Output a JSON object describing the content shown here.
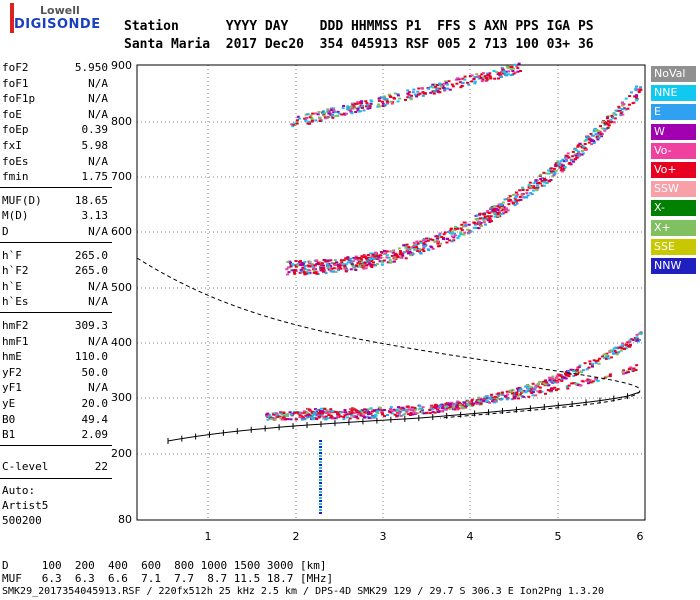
{
  "logo": {
    "line1": "Lowell",
    "line2": "DIGISONDE"
  },
  "header": {
    "row1": "Station      YYYY DAY    DDD HHMMSS P1  FFS S AXN PPS IGA PS",
    "row2": "Santa Maria  2017 Dec20  354 045913 RSF 005 2 713 100 03+ 36"
  },
  "params_group1": [
    {
      "k": "foF2",
      "v": "5.950"
    },
    {
      "k": "foF1",
      "v": "N/A"
    },
    {
      "k": "foF1p",
      "v": "N/A"
    },
    {
      "k": "foE",
      "v": "N/A"
    },
    {
      "k": "foEp",
      "v": "0.39"
    },
    {
      "k": "fxI",
      "v": "5.98"
    },
    {
      "k": "foEs",
      "v": "N/A"
    },
    {
      "k": "fmin",
      "v": "1.75"
    }
  ],
  "params_group2": [
    {
      "k": "MUF(D)",
      "v": "18.65"
    },
    {
      "k": "M(D)",
      "v": "3.13"
    },
    {
      "k": "D",
      "v": "N/A"
    }
  ],
  "params_group3": [
    {
      "k": "h`F",
      "v": "265.0"
    },
    {
      "k": "h`F2",
      "v": "265.0"
    },
    {
      "k": "h`E",
      "v": "N/A"
    },
    {
      "k": "h`Es",
      "v": "N/A"
    }
  ],
  "params_group4": [
    {
      "k": "hmF2",
      "v": "309.3"
    },
    {
      "k": "hmF1",
      "v": "N/A"
    },
    {
      "k": "hmE",
      "v": "110.0"
    },
    {
      "k": "yF2",
      "v": "50.0"
    },
    {
      "k": "yF1",
      "v": "N/A"
    },
    {
      "k": "yE",
      "v": "20.0"
    },
    {
      "k": "B0",
      "v": "49.4"
    },
    {
      "k": "B1",
      "v": "2.09"
    }
  ],
  "clevel": {
    "k": "C-level",
    "v": "22"
  },
  "auto": {
    "l1": "Auto:",
    "l2": "Artist5",
    "l3": "500200"
  },
  "legend": [
    {
      "label": "NoVal",
      "color": "#909090"
    },
    {
      "label": "NNE",
      "color": "#10c8f0"
    },
    {
      "label": "E",
      "color": "#30a0f0"
    },
    {
      "label": "W",
      "color": "#a000b0"
    },
    {
      "label": "Vo-",
      "color": "#f040a0"
    },
    {
      "label": "Vo+",
      "color": "#e80020"
    },
    {
      "label": "SSW",
      "color": "#f8a0a8"
    },
    {
      "label": "X-",
      "color": "#008000"
    },
    {
      "label": "X+",
      "color": "#80c060"
    },
    {
      "label": "SSE",
      "color": "#c8c800"
    },
    {
      "label": "NNW",
      "color": "#2020c0"
    }
  ],
  "axes": {
    "y_ticks": [
      "900",
      "800",
      "700",
      "600",
      "500",
      "400",
      "300",
      "200",
      "80"
    ],
    "x_ticks": [
      "1",
      "2",
      "3",
      "4",
      "5",
      "6"
    ]
  },
  "bottom": {
    "row1": "D     100  200  400  600  800 1000 1500 3000 [km]",
    "row2": "MUF   6.3  6.3  6.6  7.1  7.7  8.7 11.5 18.7 [MHz]",
    "footer": "SMK29_2017354045913.RSF / 220fx512h 25 kHz 2.5 km / DPS-4D SMK29 129 / 29.7 S 306.3 E Ion2Png 1.3.20"
  }
}
